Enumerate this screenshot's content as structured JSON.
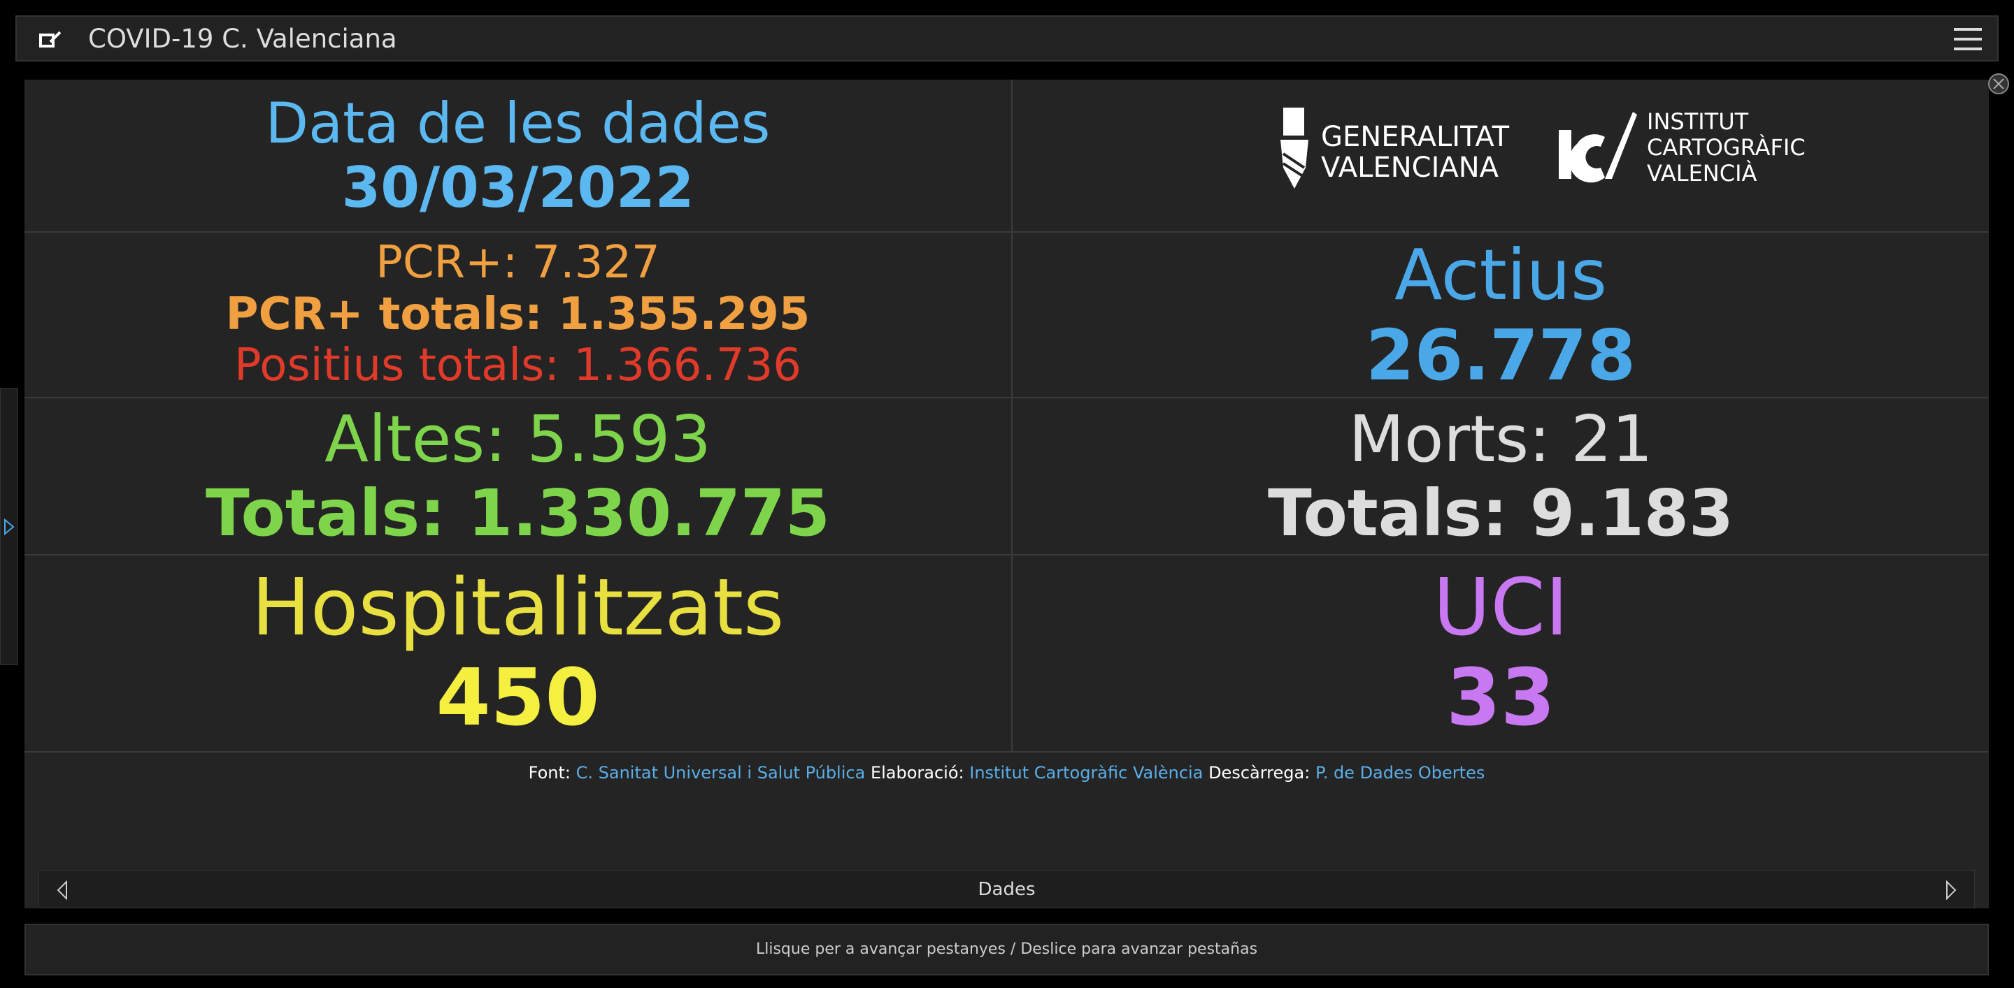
{
  "header": {
    "title": "COVID-19 C. Valenciana"
  },
  "date": {
    "label": "Data de les dades",
    "value": "30/03/2022"
  },
  "logos": {
    "gva": [
      "GENERALITAT",
      "VALENCIANA"
    ],
    "icv": [
      "INSTITUT",
      "CARTOGRÀFIC",
      "VALENCIÀ"
    ]
  },
  "cases": {
    "pcr_label": "PCR+:",
    "pcr_value": "7.327",
    "pcr_total_label": "PCR+ totals:",
    "pcr_total_value": "1.355.295",
    "positive_total_label": "Positius totals:",
    "positive_total_value": "1.366.736"
  },
  "active": {
    "label": "Actius",
    "value": "26.778"
  },
  "discharged": {
    "label": "Altes:",
    "value": "5.593",
    "total_label": "Totals:",
    "total_value": "1.330.775"
  },
  "deaths": {
    "label": "Morts:",
    "value": "21",
    "total_label": "Totals:",
    "total_value": "9.183"
  },
  "hospitalized": {
    "label": "Hospitalitzats",
    "value": "450"
  },
  "icu": {
    "label": "UCI",
    "value": "33"
  },
  "attribution": {
    "source_label": "Font:",
    "source": "C. Sanitat Universal i Salut Pública",
    "made_label": "Elaboració:",
    "made": "Institut Cartogràfic València",
    "download_label": "Descàrrega:",
    "download": "P. de Dades Obertes"
  },
  "tab": {
    "label": "Dades"
  },
  "hint": "Llisque per a avançar pestanyes / Deslice para avanzar pestañas"
}
